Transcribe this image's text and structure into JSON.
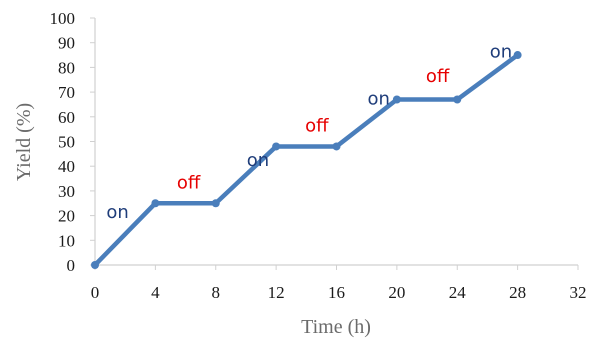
{
  "chart_data": {
    "type": "line",
    "xlabel": "Time (h)",
    "ylabel": "Yield (%)",
    "xlim": [
      0,
      32
    ],
    "ylim": [
      0,
      100
    ],
    "x_ticks": [
      "0",
      "4",
      "8",
      "12",
      "16",
      "20",
      "24",
      "28",
      "32"
    ],
    "y_ticks": [
      "0",
      "10",
      "20",
      "30",
      "40",
      "50",
      "60",
      "70",
      "80",
      "90",
      "100"
    ],
    "grid": false,
    "series": [
      {
        "color": "#4a7ebb",
        "x": [
          0,
          4,
          8,
          12,
          16,
          20,
          24,
          28
        ],
        "y": [
          0,
          25,
          25,
          48,
          48,
          67,
          67,
          85
        ]
      }
    ],
    "annotations": [
      {
        "text": "on",
        "x": 1.5,
        "y": 19,
        "color": "#1f3d7a"
      },
      {
        "text": "off",
        "x": 6.2,
        "y": 31,
        "color": "#e60000"
      },
      {
        "text": "on",
        "x": 10.8,
        "y": 40,
        "color": "#1f3d7a"
      },
      {
        "text": "off",
        "x": 14.7,
        "y": 54,
        "color": "#e60000"
      },
      {
        "text": "on",
        "x": 18.8,
        "y": 65,
        "color": "#1f3d7a"
      },
      {
        "text": "off",
        "x": 22.7,
        "y": 74,
        "color": "#e60000"
      },
      {
        "text": "on",
        "x": 26.9,
        "y": 84,
        "color": "#1f3d7a"
      }
    ]
  }
}
